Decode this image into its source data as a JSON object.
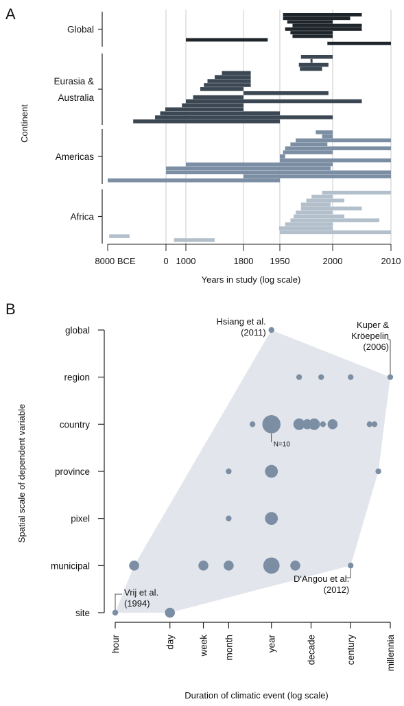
{
  "chart_data": [
    {
      "panel": "A",
      "type": "bar",
      "xlabel": "Years in study (log scale)",
      "ylabel": "Continent",
      "x_ticks": [
        "8000 BCE",
        "0",
        "1000",
        "1800",
        "1950",
        "2000",
        "2010"
      ],
      "groups": [
        {
          "name": "Global",
          "label_lines": [
            "Global"
          ],
          "color": "#1e252b",
          "spans": [
            [
              "1953",
              "2005"
            ],
            [
              "1953",
              "2003"
            ],
            [
              "1957",
              "2000"
            ],
            [
              "1962",
              "2005"
            ],
            [
              "1955",
              "2005"
            ],
            [
              "1960",
              "2000"
            ],
            [
              "1962",
              "2000"
            ],
            [
              "1000",
              "1900"
            ],
            [
              "1995",
              "2010"
            ]
          ]
        },
        {
          "name": "Eurasia & Australia",
          "label_lines": [
            "Eurasia &",
            "Australia"
          ],
          "color": "#3b4753",
          "spans": [
            [
              "1970",
              "2000"
            ],
            [
              "1979",
              "1979"
            ],
            [
              "1968",
              "1996"
            ],
            [
              "1969",
              "1990"
            ],
            [
              "1500",
              "1830"
            ],
            [
              "1400",
              "1830"
            ],
            [
              "1300",
              "1830"
            ],
            [
              "1250",
              "1830"
            ],
            [
              "1200",
              "1800"
            ],
            [
              "1800",
              "1996"
            ],
            [
              "1100",
              "1800"
            ],
            [
              "1000",
              "2005"
            ],
            [
              "800",
              "1800"
            ],
            [
              "-100",
              "1800"
            ],
            [
              "-800",
              "1950"
            ],
            [
              "-1500",
              "2000"
            ],
            [
              "-4500",
              "1950"
            ]
          ]
        },
        {
          "name": "Americas",
          "label_lines": [
            "Americas"
          ],
          "color": "#7b8ea3",
          "spans": [
            [
              "1984",
              "2000"
            ],
            [
              "1990",
              "2000"
            ],
            [
              "1965",
              "2010"
            ],
            [
              "1960",
              "1995"
            ],
            [
              "1955",
              "2010"
            ],
            [
              "1953",
              "2000"
            ],
            [
              "1950",
              "1955"
            ],
            [
              "1950",
              "2010"
            ],
            [
              "1000",
              "2000"
            ],
            [
              "0",
              "1998"
            ],
            [
              "0",
              "2010"
            ],
            [
              "1800",
              "2010"
            ],
            [
              "-8000",
              "1950"
            ]
          ]
        },
        {
          "name": "Africa",
          "label_lines": [
            "Africa"
          ],
          "color": "#b3c0cc",
          "spans": [
            [
              "1990",
              "2010"
            ],
            [
              "1980",
              "2000"
            ],
            [
              "1975",
              "2002"
            ],
            [
              "1970",
              "1998"
            ],
            [
              "1970",
              "2005"
            ],
            [
              "1965",
              "2000"
            ],
            [
              "1963",
              "2002"
            ],
            [
              "1960",
              "2008"
            ],
            [
              "1955",
              "2000"
            ],
            [
              "1947",
              "2000"
            ],
            [
              "1950",
              "2010"
            ],
            [
              "-7800",
              "-5000"
            ],
            [
              "400",
              "1400"
            ]
          ]
        }
      ]
    },
    {
      "panel": "B",
      "type": "scatter",
      "xlabel": "Duration of climatic event (log scale)",
      "ylabel": "Spatial scale of dependent variable",
      "x_categories": [
        "hour",
        "day",
        "week",
        "month",
        "year",
        "decade",
        "century",
        "millennia"
      ],
      "y_categories": [
        "site",
        "municipal",
        "pixel",
        "province",
        "country",
        "region",
        "global"
      ],
      "size_label": "N=10",
      "points": [
        {
          "x": "hour",
          "y": "site",
          "n": 1
        },
        {
          "x": "day",
          "y": "site",
          "n": 3
        },
        {
          "x": "3 hours",
          "y": "municipal",
          "n": 3
        },
        {
          "x": "week",
          "y": "municipal",
          "n": 3
        },
        {
          "x": "month",
          "y": "municipal",
          "n": 3
        },
        {
          "x": "year",
          "y": "municipal",
          "n": 8
        },
        {
          "x": "4 years",
          "y": "municipal",
          "n": 3
        },
        {
          "x": "century",
          "y": "municipal",
          "n": 1
        },
        {
          "x": "month",
          "y": "pixel",
          "n": 1
        },
        {
          "x": "year",
          "y": "pixel",
          "n": 5
        },
        {
          "x": "month",
          "y": "province",
          "n": 1
        },
        {
          "x": "year",
          "y": "province",
          "n": 5
        },
        {
          "x": "5 centuries",
          "y": "province",
          "n": 1
        },
        {
          "x": "4 months",
          "y": "country",
          "n": 1
        },
        {
          "x": "year",
          "y": "country",
          "n": 10
        },
        {
          "x": "5 years",
          "y": "country",
          "n": 4
        },
        {
          "x": "8 years",
          "y": "country",
          "n": 3
        },
        {
          "x": "12 years",
          "y": "country",
          "n": 4
        },
        {
          "x": "20 years",
          "y": "country",
          "n": 1
        },
        {
          "x": "35 years",
          "y": "country",
          "n": 3
        },
        {
          "x": "3 centuries",
          "y": "country",
          "n": 1
        },
        {
          "x": "4 centuries",
          "y": "country",
          "n": 1
        },
        {
          "x": "5 years",
          "y": "region",
          "n": 1
        },
        {
          "x": "18 years",
          "y": "region",
          "n": 1
        },
        {
          "x": "century",
          "y": "region",
          "n": 1
        },
        {
          "x": "millennia",
          "y": "region",
          "n": 1
        },
        {
          "x": "year",
          "y": "global",
          "n": 1
        }
      ],
      "annotations": [
        {
          "name": "hsiang",
          "lines": [
            "Hsiang et al.",
            "(2011)"
          ]
        },
        {
          "name": "kuper",
          "lines": [
            "Kuper &",
            "Kröepelin",
            "(2006)"
          ]
        },
        {
          "name": "dangou",
          "lines": [
            "D'Angou et al.",
            "(2012)"
          ]
        },
        {
          "name": "vrij",
          "lines": [
            "Vrij et al.",
            "(1994)"
          ]
        }
      ],
      "colors": {
        "points": "#7b8ea3",
        "hull": "#e2e6ec"
      }
    }
  ],
  "panels": {
    "a_letter": "A",
    "b_letter": "B"
  }
}
